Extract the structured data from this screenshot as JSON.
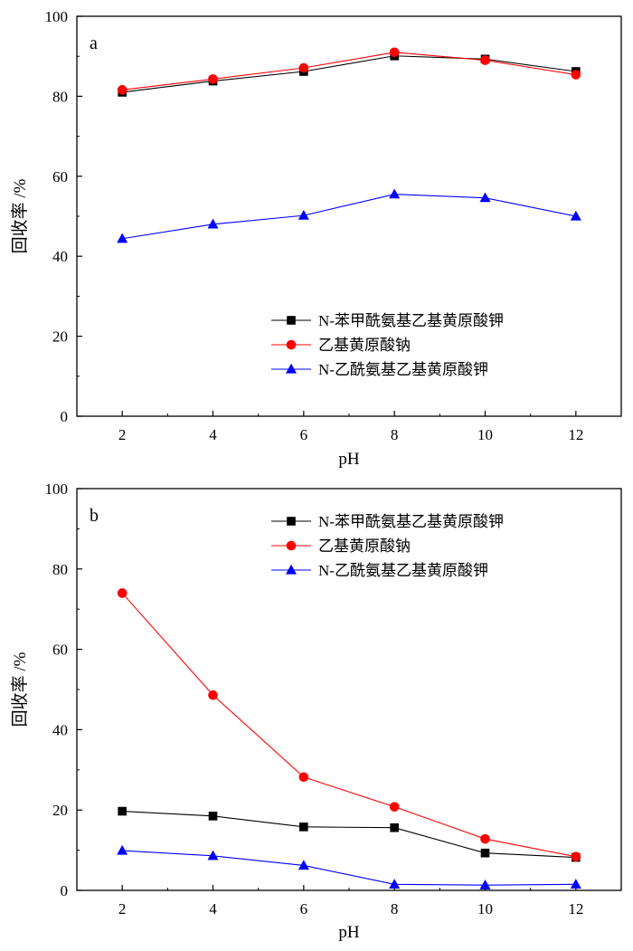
{
  "chart_data": [
    {
      "type": "line",
      "panel_label": "a",
      "x": [
        2,
        4,
        6,
        8,
        10,
        12
      ],
      "xlabel": "pH",
      "ylabel": "回收率 /%",
      "xticks": [
        2,
        4,
        6,
        8,
        10,
        12
      ],
      "yticks": [
        0,
        20,
        40,
        60,
        80,
        100
      ],
      "xlim": [
        1,
        13
      ],
      "ylim": [
        0,
        100
      ],
      "grid": false,
      "legend_position": "bottom-right",
      "series": [
        {
          "name": "N-苯甲酰氨基乙基黄原酸钾",
          "values": [
            81.0,
            83.8,
            86.2,
            90.1,
            89.3,
            86.2
          ],
          "color": "#000000",
          "marker": "square"
        },
        {
          "name": "乙基黄原酸钠",
          "values": [
            81.6,
            84.3,
            87.1,
            91.0,
            89.0,
            85.4
          ],
          "color": "#ff0000",
          "marker": "circle"
        },
        {
          "name": "N-乙酰氨基乙基黄原酸钾",
          "values": [
            44.4,
            48.0,
            50.2,
            55.5,
            54.6,
            50.0
          ],
          "color": "#0000ff",
          "marker": "triangle"
        }
      ]
    },
    {
      "type": "line",
      "panel_label": "b",
      "x": [
        2,
        4,
        6,
        8,
        10,
        12
      ],
      "xlabel": "pH",
      "ylabel": "回收率 /%",
      "xticks": [
        2,
        4,
        6,
        8,
        10,
        12
      ],
      "yticks": [
        0,
        20,
        40,
        60,
        80,
        100
      ],
      "xlim": [
        1,
        13
      ],
      "ylim": [
        0,
        100
      ],
      "grid": false,
      "legend_position": "top-right",
      "series": [
        {
          "name": "N-苯甲酰氨基乙基黄原酸钾",
          "values": [
            19.7,
            18.5,
            15.8,
            15.6,
            9.3,
            8.2
          ],
          "color": "#000000",
          "marker": "square"
        },
        {
          "name": "乙基黄原酸钠",
          "values": [
            74.0,
            48.6,
            28.2,
            20.8,
            12.8,
            8.4
          ],
          "color": "#ff0000",
          "marker": "circle"
        },
        {
          "name": "N-乙酰氨基乙基黄原酸钾",
          "values": [
            9.9,
            8.6,
            6.2,
            1.5,
            1.3,
            1.5
          ],
          "color": "#0000ff",
          "marker": "triangle"
        }
      ]
    }
  ]
}
